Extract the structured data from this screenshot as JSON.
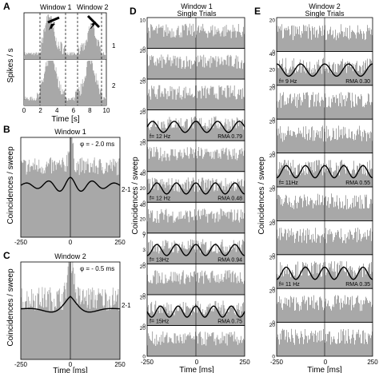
{
  "panels": {
    "A": {
      "letter": "A",
      "window1": "Window  1",
      "window2": "Window  2",
      "ylabel": "Spikes / s",
      "xlabel": "Time [s]",
      "xticks": [
        "0",
        "2",
        "4",
        "6",
        "8",
        "10"
      ],
      "rows": [
        "1",
        "2"
      ]
    },
    "B": {
      "letter": "B",
      "title": "Window  1",
      "phi": "φ = - 2.0 ms",
      "pair": "2-1",
      "ylabel": "Coincidences / sweep",
      "xticks": [
        "-250",
        "0",
        "250"
      ]
    },
    "C": {
      "letter": "C",
      "title": "Window  2",
      "phi": "φ = - 0.5 ms",
      "pair": "2-1",
      "ylabel": "Coincidences / sweep",
      "xticks": [
        "-250",
        "0",
        "250"
      ],
      "xlabel": "Time [ms]"
    },
    "D": {
      "letter": "D",
      "title1": "Window  1",
      "title2": "Single Trials",
      "ylabel": "Coincidences / sweep",
      "xticks": [
        "-250",
        "0",
        "250"
      ],
      "xlabel": "Time [ms]",
      "trials": [
        {
          "ymax": 10,
          "yticks": [
            "0",
            "10"
          ],
          "fit": null
        },
        {
          "ymax": 20,
          "yticks": [
            "0",
            "20"
          ],
          "fit": null
        },
        {
          "ymax": 20,
          "yticks": [
            "0",
            "20"
          ],
          "fit": null
        },
        {
          "ymax": 20,
          "yticks": [
            "0",
            "20"
          ],
          "fit": {
            "freq": "f= 12 Hz",
            "rma": "RMA  0.79",
            "cycles": 4.5
          }
        },
        {
          "ymax": 20,
          "yticks": [
            "0",
            "20"
          ],
          "fit": null
        },
        {
          "ymax": 40,
          "yticks": [
            "0",
            "20",
            "40"
          ],
          "fit": {
            "freq": "f= 12 Hz",
            "rma": "RMA  0.48",
            "cycles": 5
          }
        },
        {
          "ymax": 40,
          "yticks": [
            "0",
            "20",
            "40"
          ],
          "fit": null
        },
        {
          "ymax": 7,
          "yticks": [
            "0",
            "3",
            "7"
          ],
          "fit": {
            "freq": "f= 13Hz",
            "rma": "RMA  0.94",
            "cycles": 5
          }
        },
        {
          "ymax": 20,
          "yticks": [
            "0",
            "20"
          ],
          "fit": null
        },
        {
          "ymax": 20,
          "yticks": [
            "0",
            "20"
          ],
          "fit": {
            "freq": "f= 15Hz",
            "rma": "RMA  0.75",
            "cycles": 5.5
          }
        },
        {
          "ymax": 20,
          "yticks": [
            "0",
            "20"
          ],
          "fit": null
        }
      ]
    },
    "E": {
      "letter": "E",
      "title1": "Window  2",
      "title2": "Single Trials",
      "ylabel": "Coincidences / sweep",
      "xticks": [
        "-250",
        "0",
        "250"
      ],
      "xlabel": "Time [ms]",
      "trials": [
        {
          "ymax": 20,
          "yticks": [
            "0",
            "20"
          ],
          "fit": null
        },
        {
          "ymax": 40,
          "yticks": [
            "0",
            "20",
            "40"
          ],
          "fit": {
            "freq": "f= 9 Hz",
            "rma": "RMA  0.30",
            "cycles": 4
          }
        },
        {
          "ymax": 20,
          "yticks": [
            "0",
            "20"
          ],
          "fit": null
        },
        {
          "ymax": 20,
          "yticks": [
            "0",
            "20"
          ],
          "fit": null
        },
        {
          "ymax": 20,
          "yticks": [
            "0",
            "20"
          ],
          "fit": {
            "freq": "f= 11Hz",
            "rma": "RMA  0.55",
            "cycles": 5
          }
        },
        {
          "ymax": 20,
          "yticks": [
            "0",
            "20"
          ],
          "fit": null
        },
        {
          "ymax": 20,
          "yticks": [
            "0",
            "20"
          ],
          "fit": null
        },
        {
          "ymax": 20,
          "yticks": [
            "0",
            "20"
          ],
          "fit": {
            "freq": "f= 11 Hz",
            "rma": "RMA  0.35",
            "cycles": 5
          }
        },
        {
          "ymax": 20,
          "yticks": [
            "0",
            "20"
          ],
          "fit": null
        },
        {
          "ymax": 20,
          "yticks": [
            "0",
            "20"
          ],
          "fit": null
        }
      ]
    }
  },
  "colors": {
    "histogram": "#a8a8a8",
    "fit": "#000000",
    "axis": "#000000"
  }
}
